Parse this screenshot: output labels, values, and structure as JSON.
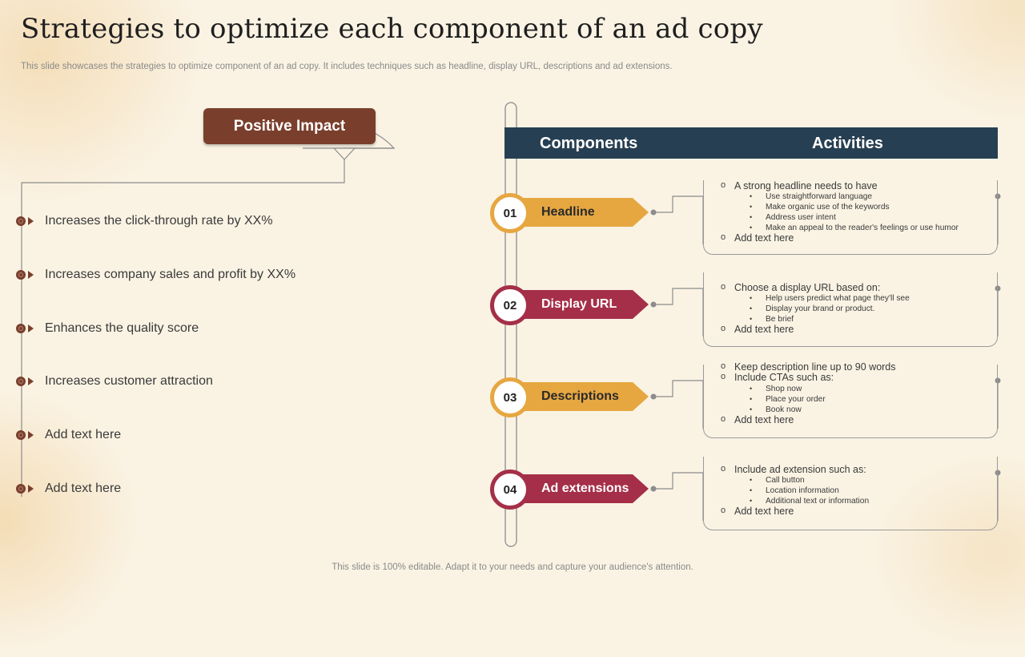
{
  "slide": {
    "title": "Strategies to optimize each component of an ad copy",
    "subtitle": "This slide showcases the strategies to optimize component of an ad copy. It includes techniques such as headline, display URL, descriptions and ad extensions.",
    "footer": "This slide is 100% editable. Adapt it to your needs and capture your audience's attention."
  },
  "impact": {
    "label": "Positive Impact",
    "items": [
      "Increases the click-through rate by XX%",
      "Increases company sales and profit by XX%",
      "Enhances the quality score",
      "Increases customer attraction",
      "Add text here",
      "Add text here"
    ]
  },
  "table": {
    "col_components": "Components",
    "col_activities": "Activities"
  },
  "components": [
    {
      "number": "01",
      "name": "Headline",
      "color": "#e6a741",
      "lines": [
        {
          "text": "A strong headline needs to have",
          "bullets": [
            "Use straightforward language",
            "Make organic use of the keywords",
            "Address user intent",
            "Make an appeal to the reader's feelings or use humor"
          ]
        },
        {
          "text": "Add text here",
          "bullets": []
        }
      ]
    },
    {
      "number": "02",
      "name": "Display URL",
      "color": "#a52f48",
      "lines": [
        {
          "text": "Choose a display URL based on:",
          "bullets": [
            "Help users predict what page they'll see",
            "Display your brand or product.",
            "Be brief"
          ]
        },
        {
          "text": "Add text here",
          "bullets": []
        }
      ]
    },
    {
      "number": "03",
      "name": "Descriptions",
      "color": "#e6a741",
      "lines": [
        {
          "text": "Keep description line up to 90 words",
          "bullets": []
        },
        {
          "text": "Include CTAs such as:",
          "bullets": [
            "Shop now",
            "Place your order",
            "Book now"
          ]
        },
        {
          "text": "Add text here",
          "bullets": []
        }
      ]
    },
    {
      "number": "04",
      "name": "Ad extensions",
      "color": "#a52f48",
      "lines": [
        {
          "text": "Include ad extension such as:",
          "bullets": [
            "Call button",
            "Location information",
            "Additional text or information"
          ]
        },
        {
          "text": "Add text here",
          "bullets": []
        }
      ]
    }
  ]
}
